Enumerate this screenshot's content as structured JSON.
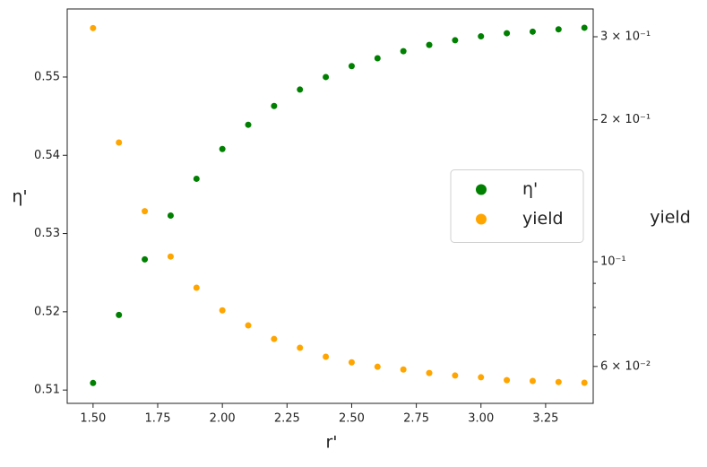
{
  "chart_data": {
    "type": "scatter",
    "xlabel": "r'",
    "ylabel": "η'",
    "y2label": "yield",
    "x": [
      1.5,
      1.6,
      1.7,
      1.8,
      1.9,
      2.0,
      2.1,
      2.2,
      2.3,
      2.4,
      2.5,
      2.6,
      2.7,
      2.8,
      2.9,
      3.0,
      3.1,
      3.2,
      3.3,
      3.4
    ],
    "series": [
      {
        "name": "η'",
        "color": "green",
        "axis": "y",
        "values": [
          0.5109,
          0.5196,
          0.5267,
          0.5323,
          0.537,
          0.5408,
          0.5439,
          0.5463,
          0.5484,
          0.55,
          0.5514,
          0.5524,
          0.5533,
          0.5541,
          0.5547,
          0.5552,
          0.5556,
          0.5558,
          0.5561,
          0.5563
        ]
      },
      {
        "name": "yield",
        "color": "orange",
        "axis": "y2",
        "values": [
          0.313,
          0.179,
          0.128,
          0.1026,
          0.0881,
          0.0789,
          0.0733,
          0.0686,
          0.0657,
          0.0629,
          0.0612,
          0.0599,
          0.0591,
          0.0581,
          0.0574,
          0.0569,
          0.0561,
          0.0559,
          0.0556,
          0.0554
        ]
      }
    ],
    "xlim": [
      1.4,
      3.434
    ],
    "xticks": [
      {
        "value": 1.5,
        "label": "1.50"
      },
      {
        "value": 1.75,
        "label": "1.75"
      },
      {
        "value": 2.0,
        "label": "2.00"
      },
      {
        "value": 2.25,
        "label": "2.25"
      },
      {
        "value": 2.5,
        "label": "2.50"
      },
      {
        "value": 2.75,
        "label": "2.75"
      },
      {
        "value": 3.0,
        "label": "3.00"
      },
      {
        "value": 3.25,
        "label": "3.25"
      }
    ],
    "ylim": [
      0.5083,
      0.5587
    ],
    "yticks": [
      0.51,
      0.52,
      0.53,
      0.54,
      0.55
    ],
    "y2scale": "log",
    "y2lim": [
      0.0501,
      0.3436
    ],
    "y2ticks": [
      {
        "value": 0.06,
        "label": "6 × 10⁻²"
      },
      {
        "value": 0.1,
        "label": "10⁻¹"
      },
      {
        "value": 0.2,
        "label": "2 × 10⁻¹"
      },
      {
        "value": 0.3,
        "label": "3 × 10⁻¹"
      }
    ],
    "y2minorticks": [
      0.07,
      0.08,
      0.09
    ],
    "legend": "center right"
  }
}
